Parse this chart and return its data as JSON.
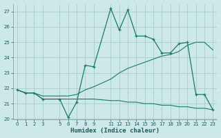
{
  "xlabel": "Humidex (Indice chaleur)",
  "bg_color": "#cce8e8",
  "grid_color": "#aacccc",
  "line_color": "#1a7a6a",
  "xlim": [
    -0.5,
    23.5
  ],
  "ylim": [
    20.0,
    27.5
  ],
  "yticks": [
    20,
    21,
    22,
    23,
    24,
    25,
    26,
    27
  ],
  "xticks": [
    0,
    1,
    2,
    3,
    5,
    6,
    7,
    8,
    9,
    11,
    12,
    13,
    14,
    15,
    16,
    17,
    18,
    19,
    20,
    21,
    22,
    23
  ],
  "series1_x": [
    0,
    1,
    2,
    3,
    5,
    6,
    7,
    8,
    9,
    11,
    12,
    13,
    14,
    15,
    16,
    17,
    18,
    19,
    20,
    21,
    22,
    23
  ],
  "series1_y": [
    21.9,
    21.7,
    21.7,
    21.3,
    21.3,
    20.1,
    21.1,
    23.5,
    23.4,
    27.2,
    25.8,
    27.1,
    25.4,
    25.4,
    25.2,
    24.3,
    24.3,
    24.9,
    25.0,
    21.6,
    21.6,
    20.6
  ],
  "series2_x": [
    0,
    1,
    2,
    3,
    5,
    6,
    7,
    8,
    9,
    11,
    12,
    13,
    14,
    15,
    16,
    17,
    18,
    19,
    20,
    21,
    22,
    23
  ],
  "series2_y": [
    21.9,
    21.7,
    21.7,
    21.3,
    21.3,
    21.3,
    21.3,
    21.3,
    21.3,
    21.2,
    21.2,
    21.1,
    21.1,
    21.0,
    21.0,
    20.9,
    20.9,
    20.8,
    20.8,
    20.7,
    20.7,
    20.6
  ],
  "series3_x": [
    0,
    1,
    2,
    3,
    5,
    6,
    7,
    8,
    9,
    11,
    12,
    13,
    14,
    15,
    16,
    17,
    18,
    19,
    20,
    21,
    22,
    23
  ],
  "series3_y": [
    21.9,
    21.7,
    21.7,
    21.5,
    21.5,
    21.5,
    21.6,
    21.9,
    22.1,
    22.6,
    23.0,
    23.3,
    23.5,
    23.7,
    23.9,
    24.1,
    24.2,
    24.4,
    24.8,
    25.0,
    25.0,
    24.5
  ]
}
